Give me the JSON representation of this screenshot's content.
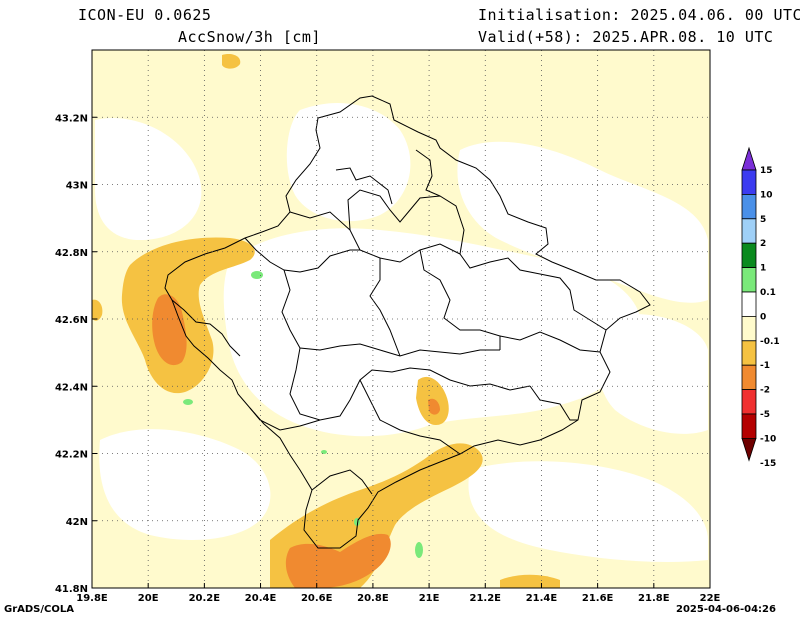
{
  "header": {
    "model": "ICON-EU 0.0625",
    "variable": "AccSnow/3h [cm]",
    "initialisation": "Initialisation: 2025.04.06. 00 UTC",
    "valid": "Valid(+58): 2025.APR.08. 10 UTC"
  },
  "footer": {
    "credit": "GrADS/COLA",
    "timestamp": "2025-04-06-04:26"
  },
  "map": {
    "lon_ticks": [
      "19.8E",
      "20E",
      "20.2E",
      "20.4E",
      "20.6E",
      "20.8E",
      "21E",
      "21.2E",
      "21.4E",
      "21.6E",
      "21.8E",
      "22E"
    ],
    "lat_ticks": [
      "41.8N",
      "42N",
      "42.2N",
      "42.4N",
      "42.6N",
      "42.8N",
      "43N",
      "43.2N"
    ],
    "lon_range": [
      19.8,
      22.0
    ],
    "lat_range": [
      41.8,
      43.4
    ],
    "grid": true
  },
  "colorbar": {
    "labels": [
      "15",
      "10",
      "5",
      "2",
      "1",
      "0.1",
      "0",
      "-0.1",
      "-1",
      "-2",
      "-5",
      "-10",
      "-15"
    ],
    "colors": [
      "#7b2fd8",
      "#3c3cf0",
      "#4a90e8",
      "#9fd0f7",
      "#0a8a1e",
      "#7ae97a",
      "#ffffff",
      "#fffbcc",
      "#f5c242",
      "#f08a30",
      "#f03030",
      "#b40000",
      "#6e0000"
    ]
  },
  "colors": {
    "light_yellow": "#fffacd",
    "yellow_orange": "#f5c242",
    "orange": "#f08a30",
    "light_green": "#7ae97a"
  }
}
